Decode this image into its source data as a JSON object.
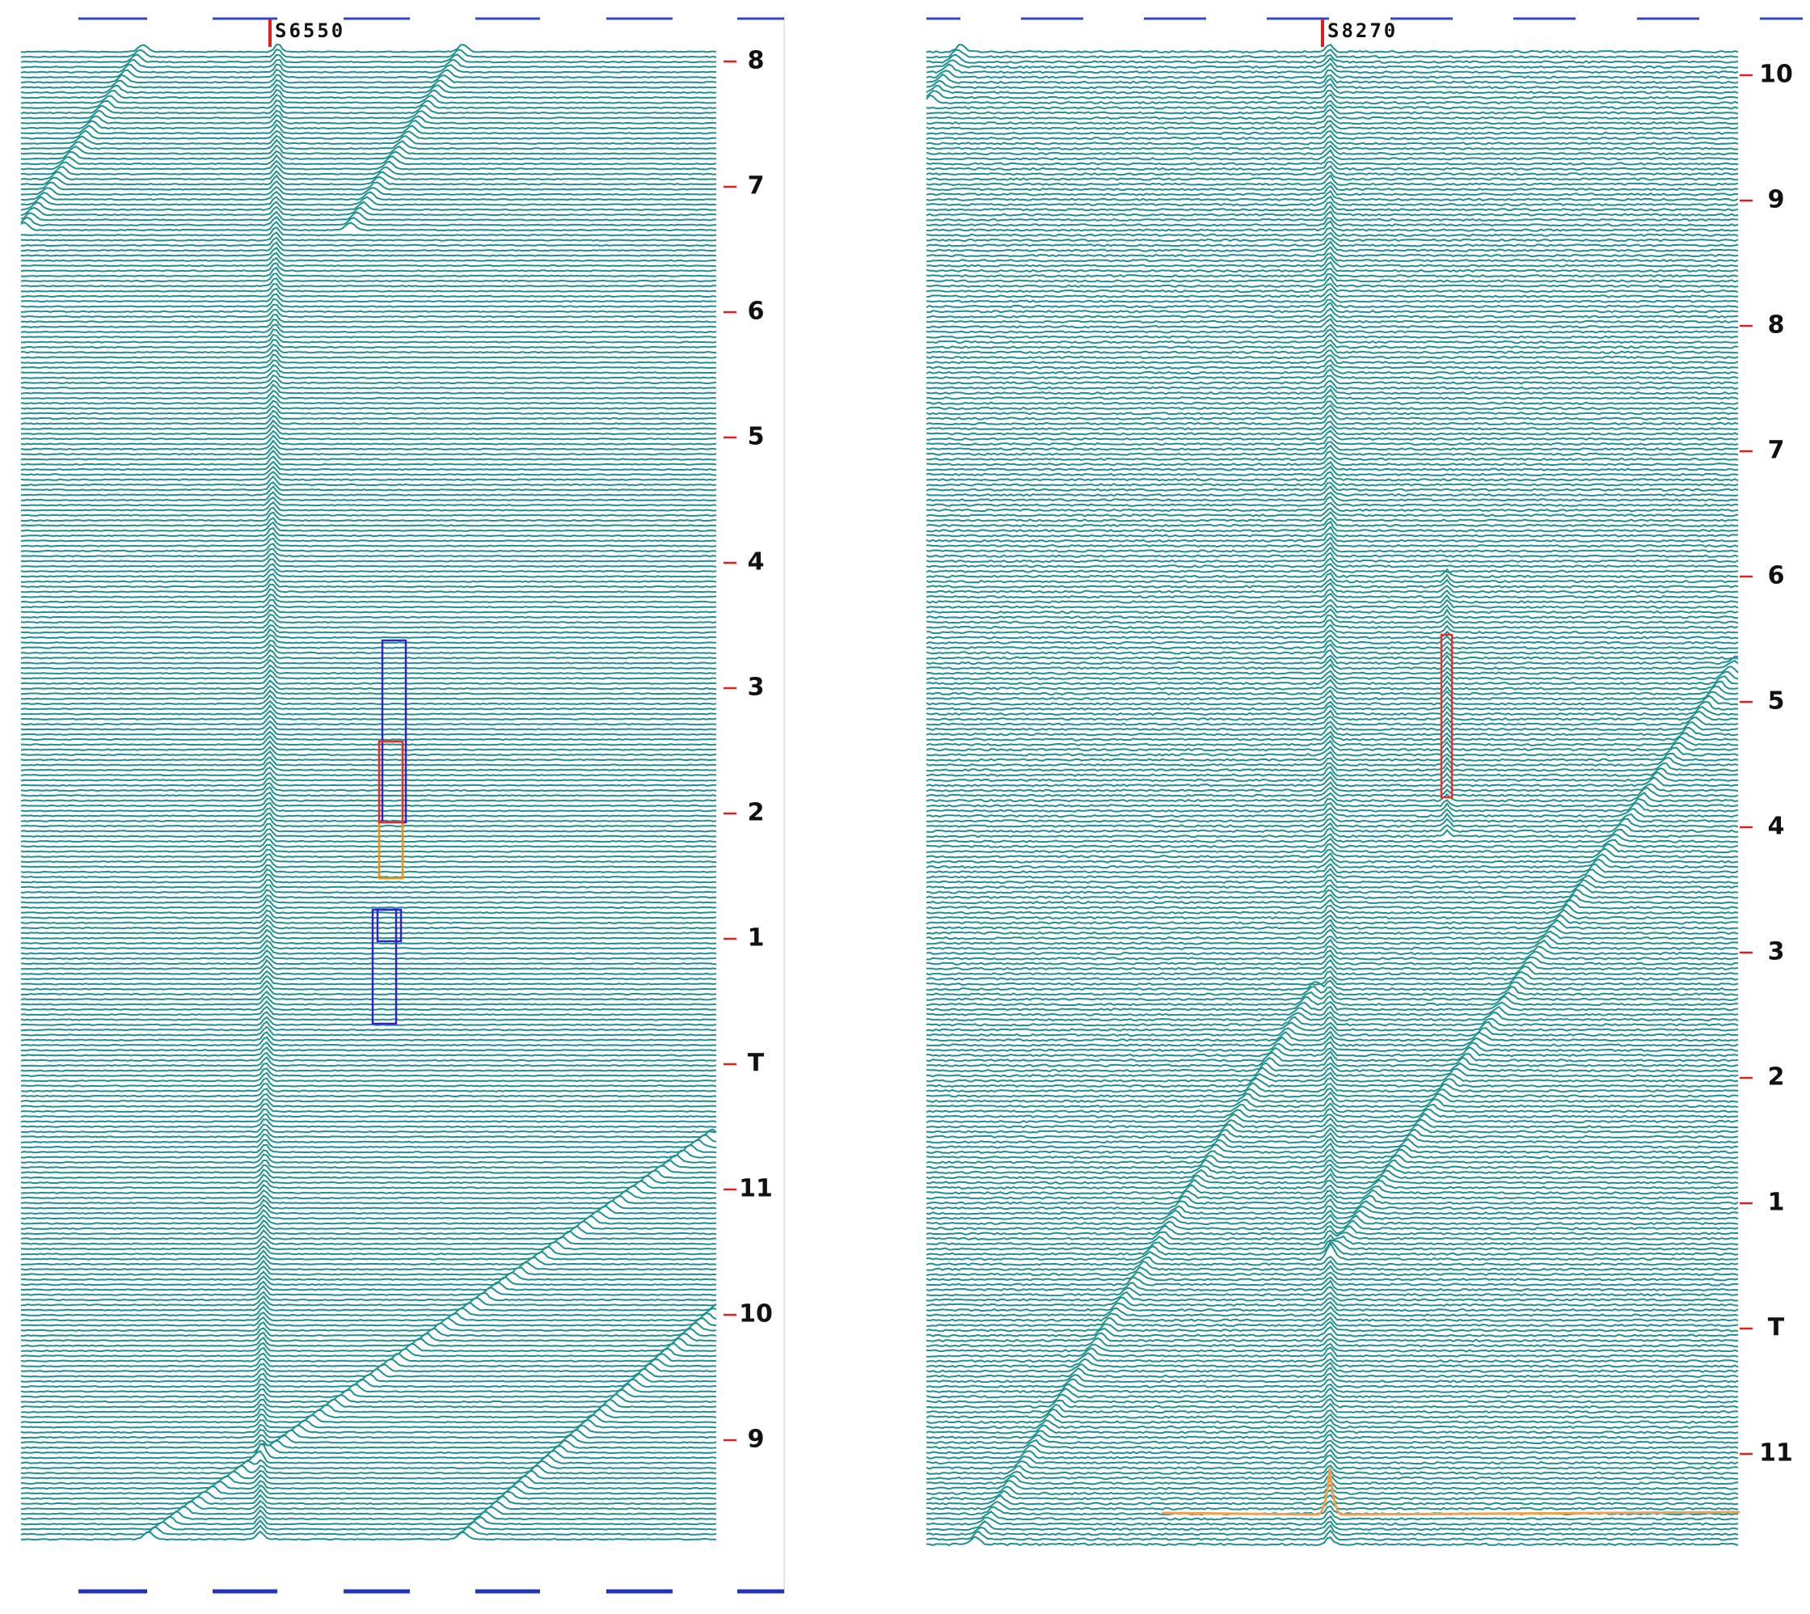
{
  "panels": [
    {
      "marker": "S6550",
      "ticks": [
        "8",
        "7",
        "6",
        "5",
        "4",
        "3",
        "2",
        "1",
        "T",
        "11",
        "10",
        "9"
      ]
    },
    {
      "marker": "S8270",
      "ticks": [
        "10",
        "9",
        "8",
        "7",
        "6",
        "5",
        "4",
        "3",
        "2",
        "1",
        "T",
        "11"
      ]
    }
  ]
}
